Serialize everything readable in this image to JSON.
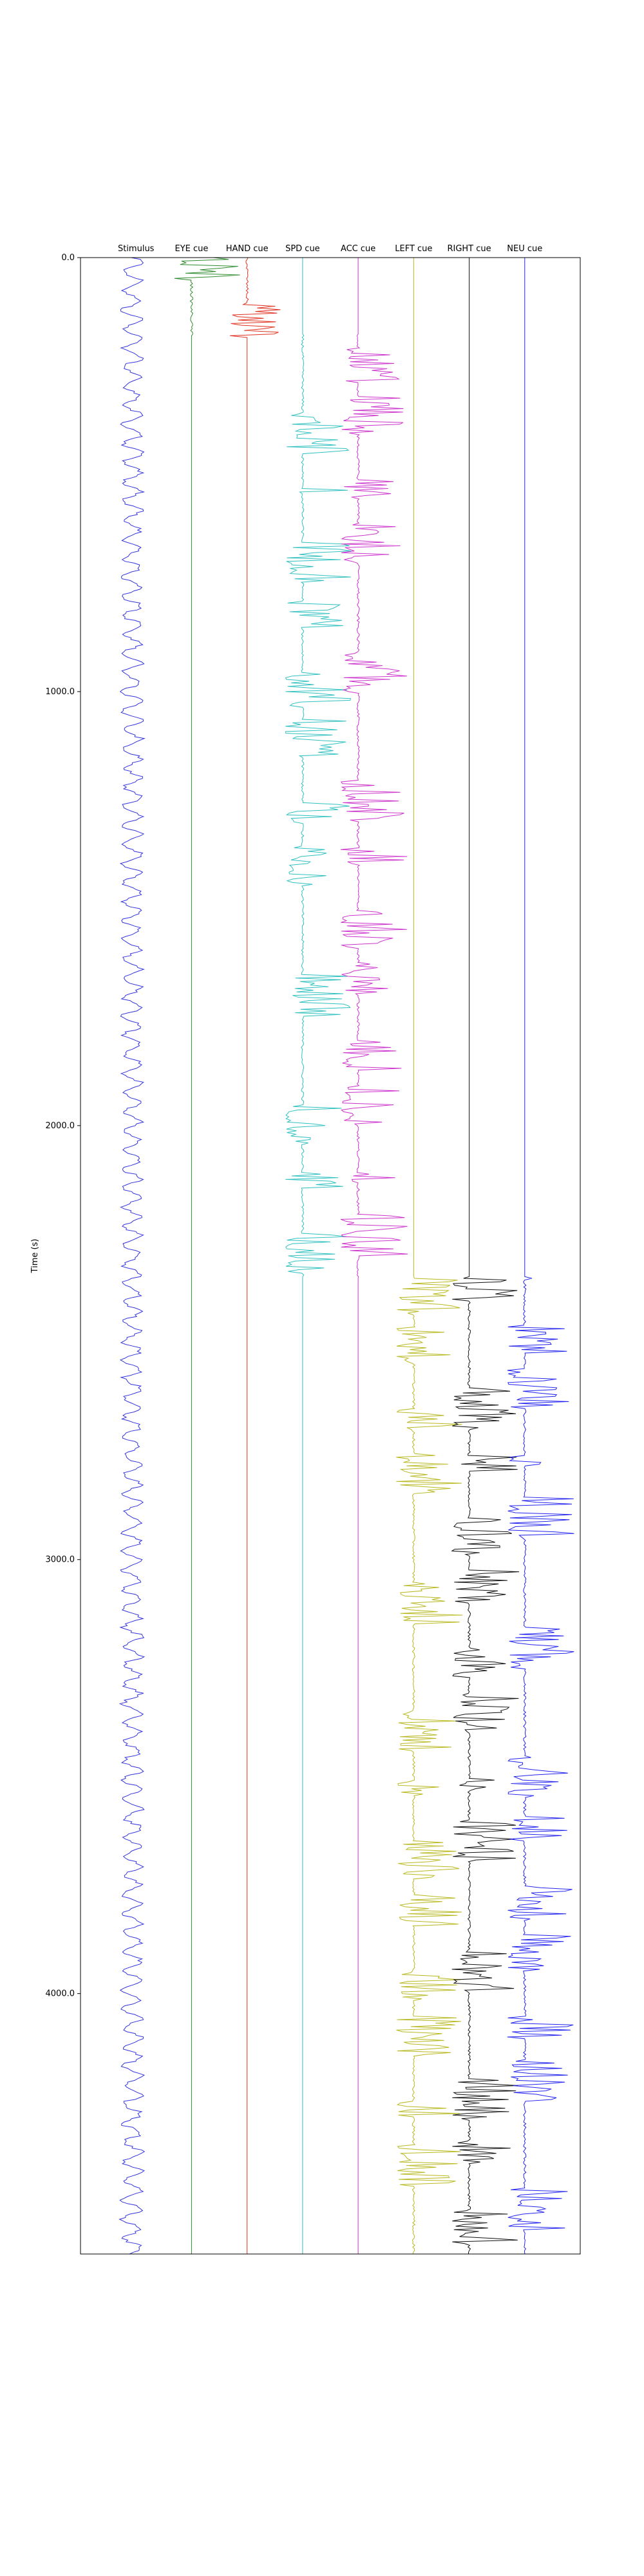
{
  "chart_data": {
    "type": "line",
    "title": "",
    "xlabel": "",
    "ylabel": "Time (s)",
    "ylim": [
      0,
      4600
    ],
    "y_inverted": true,
    "yticks": [
      {
        "value": 0,
        "label": "0.0"
      },
      {
        "value": 1000,
        "label": "1000.0"
      },
      {
        "value": 2000,
        "label": "2000.0"
      },
      {
        "value": 3000,
        "label": "3000.0"
      },
      {
        "value": 4000,
        "label": "4000.0"
      }
    ],
    "grid": false,
    "columns": [
      {
        "name": "Stimulus",
        "color": "#3333dd",
        "kind": "stimulus",
        "active": [
          [
            0,
            4600
          ]
        ]
      },
      {
        "name": "EYE cue",
        "color": "#2e8b2e",
        "kind": "cue",
        "active": [
          [
            0,
            180
          ]
        ]
      },
      {
        "name": "HAND cue",
        "color": "#e03020",
        "kind": "cue",
        "active": [
          [
            0,
            180
          ]
        ]
      },
      {
        "name": "SPD cue",
        "color": "#30c0c0",
        "kind": "cue",
        "active": [
          [
            180,
            2350
          ]
        ]
      },
      {
        "name": "ACC cue",
        "color": "#cc33cc",
        "kind": "cue",
        "active": [
          [
            180,
            2350
          ]
        ]
      },
      {
        "name": "LEFT cue",
        "color": "#b8b820",
        "kind": "cue",
        "active": [
          [
            2350,
            4600
          ]
        ]
      },
      {
        "name": "RIGHT cue",
        "color": "#111111",
        "kind": "cue",
        "active": [
          [
            2350,
            4600
          ]
        ]
      },
      {
        "name": "NEU cue",
        "color": "#2222ee",
        "kind": "cue",
        "active": [
          [
            2350,
            4600
          ]
        ]
      }
    ]
  }
}
